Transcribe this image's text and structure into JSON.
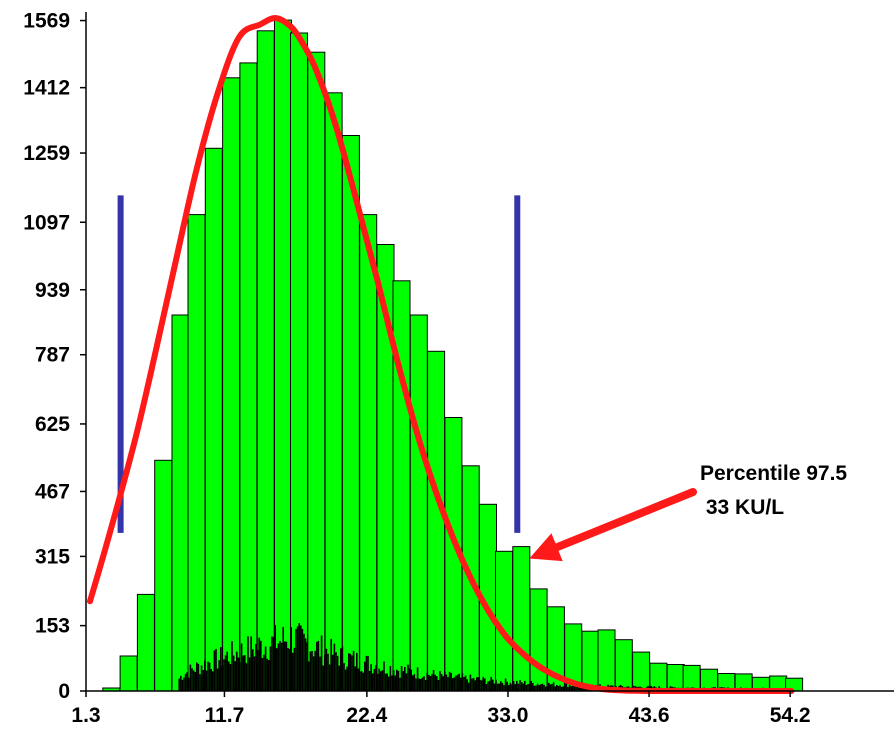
{
  "chart_data": {
    "type": "bar",
    "title": "",
    "xlabel": "",
    "ylabel": "",
    "xlim": [
      1.3,
      62.0
    ],
    "ylim": [
      0,
      1575
    ],
    "x_ticks": [
      "1.3",
      "11.7",
      "22.4",
      "33.0",
      "43.6",
      "54.2"
    ],
    "x_tick_values": [
      1.3,
      11.7,
      22.4,
      33.0,
      43.6,
      54.2
    ],
    "y_ticks": [
      "0",
      "153",
      "315",
      "467",
      "625",
      "787",
      "939",
      "1097",
      "1259",
      "1412",
      "1569"
    ],
    "y_tick_values": [
      0,
      153,
      315,
      467,
      625,
      787,
      939,
      1097,
      1259,
      1412,
      1569
    ],
    "bin_width": 1.28,
    "series": [
      {
        "type": "histogram",
        "color": "#00ff00",
        "x": [
          3.2,
          4.5,
          5.8,
          7.1,
          8.4,
          9.6,
          10.9,
          12.2,
          13.5,
          14.8,
          16.1,
          17.3,
          18.6,
          19.9,
          21.2,
          22.5,
          23.8,
          25.0,
          26.3,
          27.6,
          28.9,
          30.2,
          31.5,
          32.7,
          34.0,
          35.3,
          36.6,
          37.9,
          39.2,
          40.4,
          41.7,
          43.0,
          44.3,
          45.6,
          46.8,
          48.1,
          49.4,
          50.7,
          52.0,
          53.3,
          54.5
        ],
        "values": [
          7,
          82,
          226,
          540,
          880,
          1115,
          1270,
          1435,
          1470,
          1545,
          1570,
          1540,
          1495,
          1400,
          1300,
          1115,
          1045,
          960,
          880,
          795,
          640,
          527,
          437,
          327,
          338,
          239,
          197,
          157,
          140,
          143,
          120,
          91,
          65,
          62,
          60,
          51,
          41,
          40,
          32,
          35,
          30
        ]
      },
      {
        "type": "curve",
        "color": "#ff1a1a",
        "x": [
          1.6,
          3.0,
          5.0,
          6.5,
          8.0,
          9.6,
          11.2,
          12.8,
          14.4,
          15.5,
          16.5,
          17.3,
          18.5,
          20.0,
          21.6,
          23.2,
          24.8,
          26.4,
          28.0,
          29.6,
          31.2,
          32.8,
          34.4,
          36.0,
          38.0,
          40.0,
          42.0,
          44.0,
          46.5,
          49.0,
          52.0,
          54.3
        ],
        "values": [
          210,
          360,
          590,
          790,
          1000,
          1220,
          1400,
          1530,
          1560,
          1575,
          1560,
          1530,
          1460,
          1330,
          1150,
          960,
          760,
          580,
          430,
          305,
          205,
          130,
          80,
          45,
          18,
          5,
          1,
          0,
          0,
          0,
          0,
          0
        ]
      }
    ],
    "low_bins_color": "#000000",
    "reference_lines": [
      {
        "x": 3.9,
        "y_range": [
          370,
          1160
        ],
        "color": "#3333aa"
      },
      {
        "x": 33.7,
        "y_range": [
          370,
          1160
        ],
        "color": "#3333aa"
      }
    ],
    "annotation": {
      "lines": [
        "Percentile 97.5",
        " 33 KU/L"
      ],
      "arrow_color": "#ff1a1a",
      "points_to": [
        34.6,
        310
      ]
    }
  }
}
